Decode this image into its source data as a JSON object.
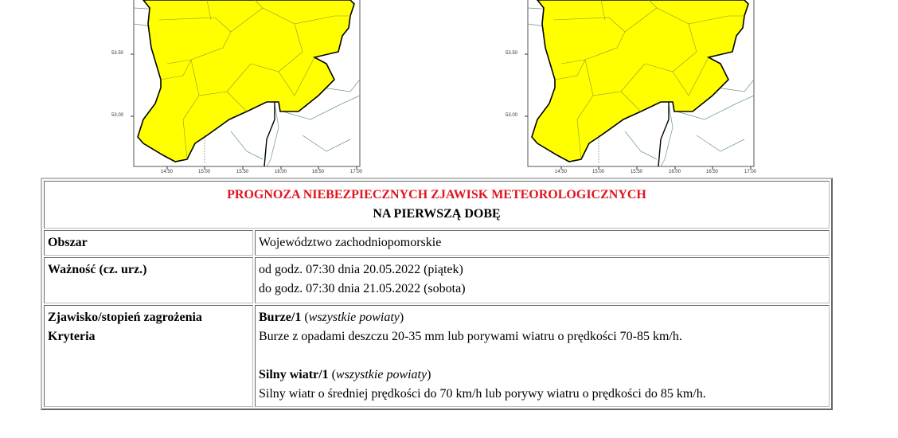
{
  "maps": [
    {
      "y_ticks": [
        "53.50",
        "53.00"
      ],
      "x_ticks": [
        "14.50",
        "15.00",
        "15.50",
        "16.00",
        "16.50",
        "17.00"
      ],
      "fill_color": "#ffff00"
    },
    {
      "y_ticks": [
        "53.50",
        "53.00"
      ],
      "x_ticks": [
        "14.50",
        "15.00",
        "15.50",
        "16.00",
        "16.50",
        "17.00"
      ],
      "fill_color": "#ffff00"
    }
  ],
  "table": {
    "title": "PROGNOZA NIEBEZPIECZNYCH ZJAWISK METEOROLOGICZNYCH",
    "subtitle": "NA PIERWSZĄ DOBĘ",
    "title_color": "#e0141e",
    "area_label": "Obszar",
    "area_value": "Województwo zachodniopomorskie",
    "validity_label": "Ważność (cz. urz.)",
    "validity_from": "od godz. 07:30 dnia 20.05.2022 (piątek)",
    "validity_to": "do godz. 07:30 dnia 21.05.2022 (sobota)",
    "phenomenon_label": "Zjawisko/stopień zagrożenia",
    "criteria_label": "Kryteria",
    "warnings": [
      {
        "name": "Burze/1",
        "scope": "wszystkie powiaty",
        "description": "Burze z opadami deszczu 20-35 mm lub porywami wiatru o prędkości 70-85 km/h."
      },
      {
        "name": "Silny wiatr/1",
        "scope": "wszystkie powiaty",
        "description": "Silny wiatr o średniej prędkości do 70 km/h lub porywy wiatru o prędkości do 85 km/h."
      }
    ]
  }
}
